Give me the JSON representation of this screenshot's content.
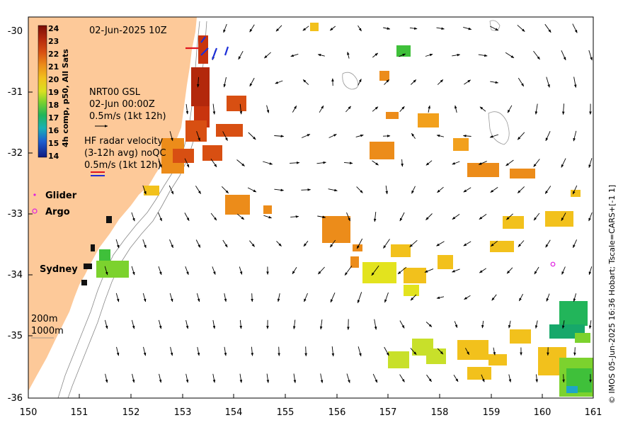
{
  "map": {
    "timestamp": "02-Jun-2025 10Z",
    "x_ticks": [
      "150",
      "151",
      "152",
      "153",
      "154",
      "155",
      "156",
      "157",
      "158",
      "159",
      "160",
      "161"
    ],
    "y_ticks": [
      "-30",
      "-31",
      "-32",
      "-33",
      "-34",
      "-35",
      "-36"
    ],
    "lon_range": [
      150,
      161
    ],
    "lat_range": [
      -30,
      -36
    ]
  },
  "colorbar": {
    "title": "4h comp, p50, All Sats",
    "ticks": [
      "24",
      "23",
      "22",
      "21",
      "20",
      "19",
      "18",
      "17",
      "16",
      "15",
      "14"
    ],
    "range": [
      14,
      24
    ],
    "colors": [
      "#7a0d06",
      "#b3280c",
      "#d84f12",
      "#ec8c1a",
      "#f2c11c",
      "#e3e31e",
      "#9fd82a",
      "#3fc03a",
      "#17a86a",
      "#1ea6c6",
      "#1c54c8",
      "#101a80"
    ]
  },
  "legend": {
    "gsl": [
      "NRT00 GSL",
      "02-Jun 00:00Z",
      "0.5m/s (1kt 12h)"
    ],
    "hf_radar": [
      "HF radar velocity",
      "(3-12h avg) noQC",
      "0.5m/s (1kt 12h)"
    ],
    "glider_label": "Glider",
    "argo_label": "Argo",
    "glider_color": "#e020e0",
    "argo_color": "#e020e0",
    "bathymetry": [
      "200m",
      "1000m"
    ]
  },
  "places": {
    "sydney": "Sydney"
  },
  "credit": "© IMOS 05-Jun-2025 16:36 Hobart; Tscale=CARS+[-1 1]",
  "argo_floats": [
    {
      "lon": 160.2,
      "lat": -33.85
    }
  ],
  "colors": {
    "land": "#fdc999",
    "sea": "#ffffff",
    "arrow": "#000000"
  }
}
